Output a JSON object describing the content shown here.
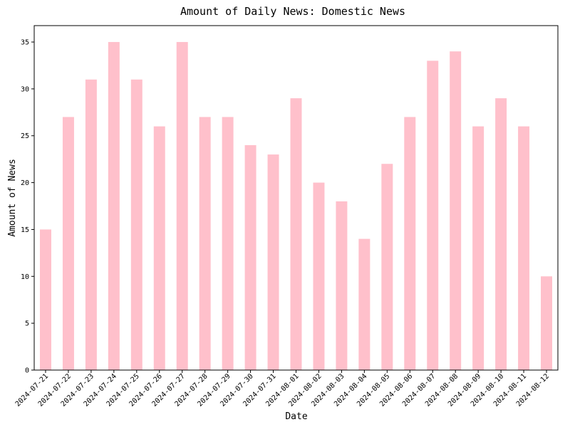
{
  "chart_data": {
    "type": "bar",
    "title": "Amount of Daily News: Domestic News",
    "xlabel": "Date",
    "ylabel": "Amount of News",
    "categories": [
      "2024-07-21",
      "2024-07-22",
      "2024-07-23",
      "2024-07-24",
      "2024-07-25",
      "2024-07-26",
      "2024-07-27",
      "2024-07-28",
      "2024-07-29",
      "2024-07-30",
      "2024-07-31",
      "2024-08-01",
      "2024-08-02",
      "2024-08-03",
      "2024-08-04",
      "2024-08-05",
      "2024-08-06",
      "2024-08-07",
      "2024-08-08",
      "2024-08-09",
      "2024-08-10",
      "2024-08-11",
      "2024-08-12"
    ],
    "values": [
      15,
      27,
      31,
      35,
      31,
      26,
      35,
      27,
      27,
      24,
      23,
      29,
      20,
      18,
      14,
      22,
      27,
      33,
      34,
      26,
      29,
      26,
      10
    ],
    "yticks": [
      0,
      5,
      10,
      15,
      20,
      25,
      30,
      35
    ],
    "ylim": [
      0,
      36.75
    ],
    "bar_color": "#ffc0cb",
    "grid": false,
    "legend": "none"
  }
}
